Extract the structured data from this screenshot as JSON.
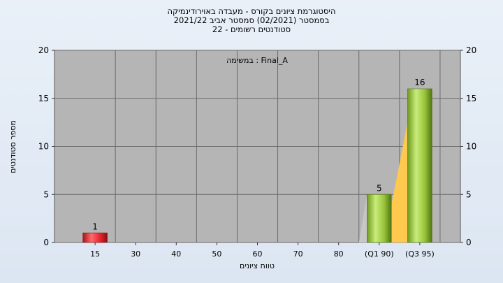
{
  "header": {
    "line1": "היסטוגרמת ציונים בקורס - מעבדה באוירודינמיקה",
    "line2": "בסמסטר  (02/2021)  סמסטר אביב 2021/22",
    "line3": "סטודנטים רשומים - 22"
  },
  "colors": {
    "plot_bg": "#b5b5b5",
    "bar_red": "#e8252b",
    "bar_green": "#9ccc3c",
    "quartile_fill": "#ffc84e"
  },
  "chart_data": {
    "type": "bar",
    "title": "היסטוגרמת ציונים בקורס - מעבדה באוירודינמיקה",
    "annotation": "Final_A : במשימה",
    "xlabel": "טווח ציונים",
    "ylabel": "מספר סטודנטים",
    "ylim": [
      0,
      20
    ],
    "yticks": [
      "0",
      "5",
      "10",
      "15",
      "20"
    ],
    "categories": [
      "15",
      "30",
      "40",
      "50",
      "60",
      "70",
      "80",
      "(Q1 90)",
      "(Q3 95)"
    ],
    "values": [
      1,
      0,
      0,
      0,
      0,
      0,
      0,
      5,
      16
    ],
    "bar_colors": [
      "red",
      "",
      "",
      "",
      "",
      "",
      "",
      "green",
      "green"
    ],
    "quartile_band": [
      "(Q1 90)",
      "(Q3 95)"
    ],
    "grid": true
  }
}
